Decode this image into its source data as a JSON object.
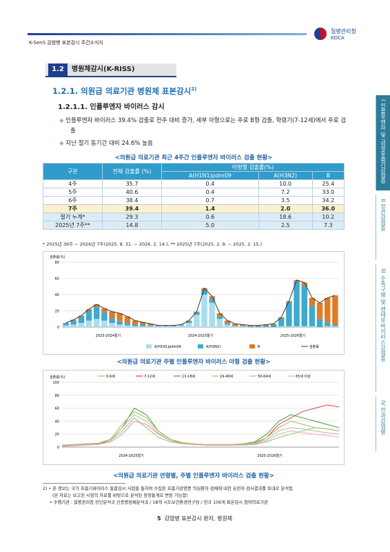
{
  "header": {
    "title": "K-SenS 감염병 표본감시 주간소식지",
    "org_kr": "질병관리청",
    "org_en": "KDCA"
  },
  "section": {
    "number": "1.2",
    "title": "병원체감시(K-RISS)"
  },
  "subsection": {
    "title": "1.2.1. 의원급 의료기관 병원체 표본감시",
    "footnote_ref": "2)"
  },
  "subsubsection": {
    "title": "1.2.1.1. 인플루엔자 바이러스 감시"
  },
  "bullets": [
    "인플루엔자 바이러스 39.4% 검출로 전주 대비 증가, 세부 아형으로는 주로 B형 검출, 학령기(7-12세)에서 주로 검출",
    "지난 절기 동기간 대비 24.6% 높음"
  ],
  "table": {
    "caption": "<의원급 의료기관 최근 4주간 인플루엔자 바이러스 검출 현황>",
    "headers": [
      "구분",
      "전체 검출률 (%)",
      "아형별 검출률(%)",
      "A(H1N1)pdm09",
      "A(H3N2)",
      "B"
    ],
    "rows": [
      [
        "4주",
        "35.7",
        "0.4",
        "10.0",
        "25.4"
      ],
      [
        "5주",
        "40.6",
        "0.4",
        "7.2",
        "33.0"
      ],
      [
        "6주",
        "38.4",
        "0.7",
        "3.5",
        "34.2"
      ],
      [
        "7주",
        "39.4",
        "1.4",
        "2.0",
        "36.0"
      ],
      [
        "절기 누계*",
        "29.3",
        "0.6",
        "18.6",
        "10.2"
      ],
      [
        "2025년 7주**",
        "14.8",
        "5.0",
        "2.5",
        "7.3"
      ]
    ],
    "note": "* 2025년 36주 ~ 2026년 7주(2025. 8. 31. ~ 2026. 2. 14.), ** 2025년 7주(2025. 2. 9. ~ 2025. 2. 15.)"
  },
  "chart_data": [
    {
      "type": "bar",
      "caption": "<의원급 의료기관 주별 인플루엔자 바이러스 아형 검출 현황>",
      "y_label": "검출률(%)",
      "seasons": [
        "2023-2024절기",
        "2024-2025절기",
        "2025-2026절기"
      ],
      "ylim": [
        0,
        80
      ],
      "yticks": [
        0,
        20,
        40,
        60,
        80
      ],
      "series": [
        {
          "name": "A(H1N1)pdm09",
          "color": "#a9def0",
          "values": [
            2,
            3,
            5,
            8,
            10,
            8,
            5,
            3,
            2,
            1,
            1,
            1,
            1,
            1,
            1,
            2,
            5,
            15,
            40,
            30,
            10,
            3,
            1,
            1,
            0,
            0,
            0,
            0,
            1,
            1,
            1,
            1,
            1,
            0,
            1,
            1
          ]
        },
        {
          "name": "A(H3N2)",
          "color": "#3fa9cf",
          "values": [
            3,
            5,
            8,
            12,
            15,
            10,
            6,
            4,
            3,
            2,
            2,
            1,
            1,
            1,
            1,
            1,
            2,
            3,
            6,
            5,
            3,
            2,
            1,
            1,
            1,
            1,
            2,
            3,
            10,
            30,
            55,
            50,
            25,
            10,
            5,
            2
          ]
        },
        {
          "name": "B",
          "color": "#e07b27",
          "values": [
            0,
            1,
            1,
            2,
            3,
            5,
            8,
            10,
            8,
            5,
            3,
            2,
            0,
            0,
            0,
            0,
            1,
            1,
            2,
            3,
            4,
            3,
            2,
            1,
            1,
            1,
            1,
            1,
            1,
            1,
            2,
            4,
            10,
            20,
            30,
            36
          ]
        },
        {
          "name": "검출률",
          "color": "#333333",
          "line": true,
          "values": [
            5,
            9,
            14,
            22,
            28,
            23,
            19,
            17,
            13,
            8,
            6,
            4,
            2,
            2,
            2,
            3,
            8,
            19,
            48,
            38,
            17,
            8,
            4,
            3,
            2,
            2,
            3,
            4,
            12,
            32,
            58,
            55,
            36,
            30,
            36,
            39
          ]
        }
      ]
    },
    {
      "type": "line",
      "caption": "<의원급 의료기관 연령별, 주별 인플루엔자 바이러스 검출 현황>",
      "y_label": "검출률(%)",
      "seasons": [
        "2024-2025절기",
        "2025-2026절기"
      ],
      "ylim": [
        0,
        100
      ],
      "yticks": [
        0,
        20,
        40,
        60,
        80,
        100
      ],
      "series": [
        {
          "name": "0-6세",
          "color": "#8dc96b",
          "values": [
            3,
            4,
            5,
            6,
            10,
            25,
            45,
            30,
            15,
            8,
            5,
            4,
            3,
            3,
            3,
            3,
            4,
            8,
            15,
            20,
            25,
            30,
            28,
            25
          ]
        },
        {
          "name": "7-12세",
          "color": "#e0403a",
          "values": [
            2,
            3,
            4,
            5,
            8,
            20,
            40,
            35,
            20,
            10,
            6,
            4,
            3,
            3,
            3,
            4,
            6,
            15,
            35,
            45,
            55,
            60,
            65,
            62
          ]
        },
        {
          "name": "13-18세",
          "color": "#3a9a45",
          "values": [
            2,
            3,
            4,
            6,
            10,
            30,
            60,
            50,
            25,
            12,
            6,
            4,
            3,
            3,
            3,
            5,
            8,
            20,
            40,
            50,
            45,
            40,
            35,
            30
          ]
        },
        {
          "name": "19-49세",
          "color": "#a7b84f",
          "values": [
            3,
            4,
            5,
            6,
            12,
            35,
            55,
            45,
            25,
            12,
            7,
            5,
            4,
            4,
            4,
            5,
            7,
            15,
            30,
            40,
            35,
            30,
            28,
            25
          ]
        },
        {
          "name": "50-64세",
          "color": "#b5b5b5",
          "values": [
            2,
            3,
            4,
            5,
            10,
            30,
            50,
            40,
            22,
            10,
            6,
            4,
            3,
            3,
            3,
            4,
            6,
            12,
            25,
            30,
            28,
            25,
            22,
            20
          ]
        },
        {
          "name": "65세 이상",
          "color": "#f0a8a8",
          "values": [
            1,
            2,
            3,
            4,
            8,
            20,
            40,
            35,
            20,
            10,
            5,
            4,
            3,
            3,
            3,
            3,
            5,
            10,
            20,
            25,
            22,
            20,
            18,
            15
          ]
        }
      ]
    }
  ],
  "footnotes": {
    "ref": "2)",
    "lines": [
      "• 본 정보는 국가 호흡기바이러스 통합감시 사업을 통하여 수집된 호흡기감염증 의심환자 검체에 대한 유전자 검사결과를 토대로 분석됨",
      "(본 자료는 보고된 시점의 자료를 바탕으로 분석된 잠정통계로 변동 가능함)",
      "• 수행기관 : 질병관리청 진단분석국 신종병원체분석과 / 18개 시도보건환경연구원 / 전국 106개 표본감시 참여의료기관"
    ]
  },
  "footer": {
    "page": "5",
    "title": "감염병 표본감시 환자, 병원체"
  },
  "side_tabs": [
    {
      "num": "I",
      "label": "인플루엔자 및 급성호흡기감염증"
    },
    {
      "num": "II",
      "label": "장관감염증"
    },
    {
      "num": "III",
      "label": "수족구병 및 엔테로바이러스감염증"
    },
    {
      "num": "IV",
      "label": "안과감염병"
    }
  ]
}
